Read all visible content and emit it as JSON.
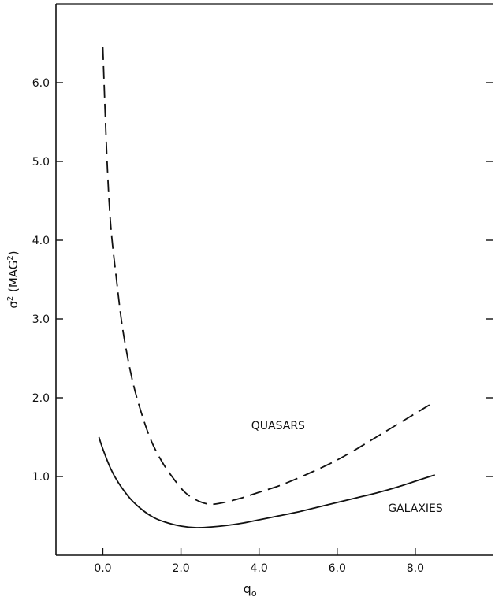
{
  "chart_data": {
    "type": "line",
    "title": "",
    "xlabel": "q",
    "xlabel_subscript": "o",
    "ylabel": "σ",
    "ylabel_sup": "2",
    "ylabel_unit_prefix": " (MAG",
    "ylabel_unit_sup": "2",
    "ylabel_unit_suffix": ")",
    "xlim": [
      -1.2,
      10.0
    ],
    "ylim": [
      0.0,
      7.0
    ],
    "grid": false,
    "legend": "none",
    "x_ticks": [
      0.0,
      2.0,
      4.0,
      6.0,
      8.0
    ],
    "x_tick_labels": [
      "0.0",
      "2.0",
      "4.0",
      "6.0",
      "8.0"
    ],
    "y_ticks": [
      1.0,
      2.0,
      3.0,
      4.0,
      5.0,
      6.0
    ],
    "y_tick_labels": [
      "1.0",
      "2.0",
      "3.0",
      "4.0",
      "5.0",
      "6.0"
    ],
    "series": [
      {
        "name": "QUASARS",
        "style": "dashed",
        "color": "#111111",
        "label_at": [
          3.8,
          1.6
        ],
        "x": [
          0.0,
          0.1,
          0.2,
          0.35,
          0.5,
          0.7,
          0.9,
          1.2,
          1.5,
          1.8,
          2.1,
          2.4,
          2.7,
          3.0,
          3.5,
          4.0,
          4.5,
          5.0,
          5.5,
          6.0,
          6.5,
          7.0,
          7.5,
          8.0,
          8.5
        ],
        "y": [
          6.45,
          5.1,
          4.2,
          3.5,
          2.9,
          2.35,
          1.95,
          1.5,
          1.2,
          0.98,
          0.8,
          0.7,
          0.65,
          0.66,
          0.72,
          0.8,
          0.88,
          0.98,
          1.09,
          1.21,
          1.35,
          1.5,
          1.65,
          1.8,
          1.95
        ]
      },
      {
        "name": "GALAXIES",
        "style": "solid",
        "color": "#111111",
        "label_at": [
          7.3,
          0.55
        ],
        "x": [
          -0.1,
          0.0,
          0.2,
          0.4,
          0.7,
          1.0,
          1.3,
          1.6,
          2.0,
          2.4,
          2.8,
          3.2,
          3.6,
          4.0,
          4.5,
          5.0,
          5.5,
          6.0,
          6.5,
          7.0,
          7.5,
          8.0,
          8.5
        ],
        "y": [
          1.5,
          1.35,
          1.1,
          0.92,
          0.72,
          0.58,
          0.48,
          0.42,
          0.37,
          0.35,
          0.36,
          0.38,
          0.41,
          0.45,
          0.5,
          0.55,
          0.61,
          0.67,
          0.73,
          0.79,
          0.86,
          0.94,
          1.02
        ]
      }
    ]
  }
}
